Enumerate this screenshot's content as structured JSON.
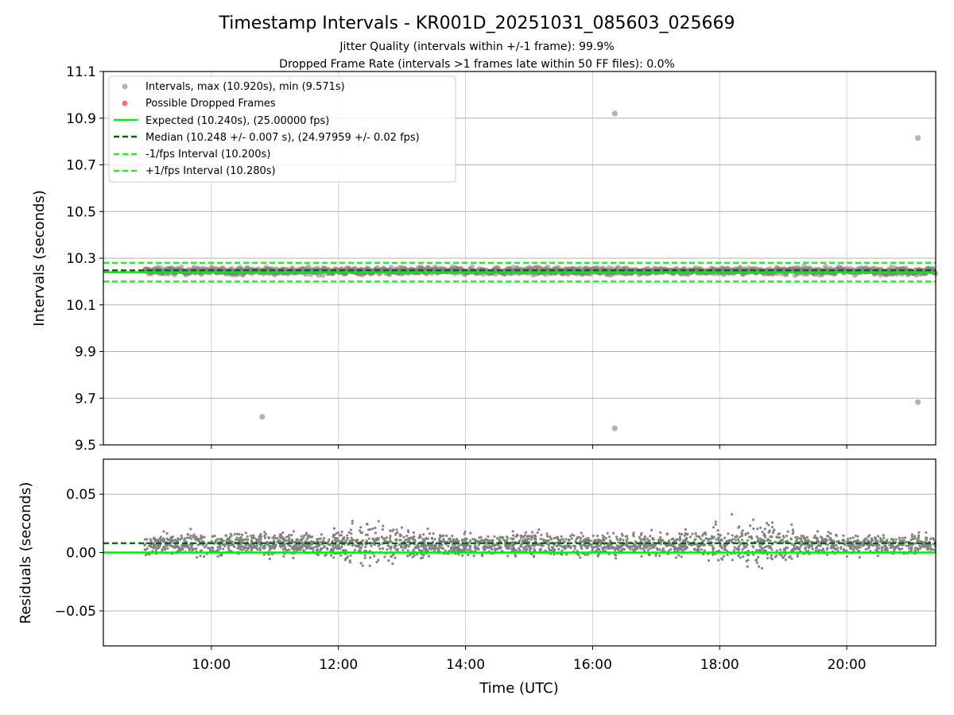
{
  "chart_data": [
    {
      "type": "scatter",
      "title": "Timestamp Intervals - KR001D_20251031_085603_025669",
      "subtitle_1": "Jitter Quality (intervals within +/-1 frame): 99.9%",
      "subtitle_2": "Dropped Frame Rate (intervals >1 frames late within 50 FF files): 0.0%",
      "ylabel": "Intervals (seconds)",
      "ylim": [
        9.5,
        11.1
      ],
      "yticks": [
        "9.5",
        "9.7",
        "9.9",
        "10.1",
        "10.3",
        "10.5",
        "10.7",
        "10.9",
        "11.1"
      ],
      "ytick_values": [
        9.5,
        9.7,
        9.9,
        10.1,
        10.3,
        10.5,
        10.7,
        10.9,
        11.1
      ],
      "xlim_hours": [
        8.3,
        21.4
      ],
      "grid": true,
      "legend_position": "top-left",
      "legend": [
        "Intervals, max (10.920s), min (9.571s)",
        "Possible Dropped Frames",
        "Expected (10.240s), (25.00000 fps)",
        "Median (10.248 +/- 0.007 s), (24.97959 +/- 0.02 fps)",
        "-1/fps Interval (10.200s)",
        "+1/fps Interval (10.280s)"
      ],
      "expected": 10.24,
      "median": 10.248,
      "minus_fps": 10.2,
      "plus_fps": 10.28,
      "band_start_hour": 8.95,
      "band_end_hour": 21.4,
      "band_center": 10.245,
      "band_halfwidth": 0.014,
      "outliers": [
        {
          "x": 10.8,
          "y": 9.62
        },
        {
          "x": 16.35,
          "y": 10.92
        },
        {
          "x": 16.35,
          "y": 9.571
        },
        {
          "x": 21.12,
          "y": 10.815
        },
        {
          "x": 21.12,
          "y": 9.683
        }
      ],
      "colors": {
        "points": "#808080",
        "dropped": "#ff6060",
        "expected": "#00ee00",
        "median": "#006400",
        "fps_bounds": "#22ee22",
        "grid": "#b0b0b0"
      }
    },
    {
      "type": "scatter",
      "ylabel": "Residuals (seconds)",
      "xlabel": "Time (UTC)",
      "ylim": [
        -0.08,
        0.08
      ],
      "yticks": [
        "0.05",
        "0.00",
        "−0.05"
      ],
      "ytick_values": [
        0.05,
        0.0,
        -0.05
      ],
      "xlim_hours": [
        8.3,
        21.4
      ],
      "xticks": [
        "10:00",
        "12:00",
        "14:00",
        "16:00",
        "18:00",
        "20:00"
      ],
      "xtick_values": [
        10,
        12,
        14,
        16,
        18,
        20
      ],
      "zero_line": 0.0,
      "median_offset": 0.008,
      "residual_start_hour": 8.95,
      "residual_end_hour": 21.4,
      "residual_center": 0.007,
      "residual_spread_base": 0.0045,
      "wider_spread_regions_hours": [
        [
          11.8,
          13.2
        ],
        [
          17.6,
          19.4
        ]
      ],
      "grid": true
    }
  ]
}
